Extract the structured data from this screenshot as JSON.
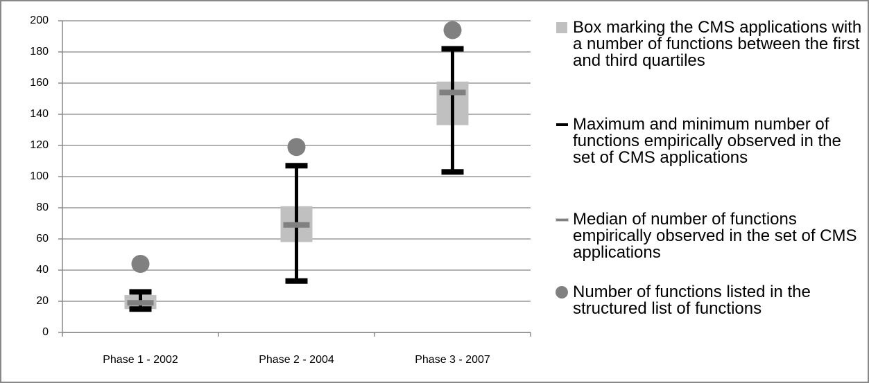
{
  "chart_data": {
    "type": "boxplot",
    "categories": [
      "Phase 1 - 2002",
      "Phase 2 - 2004",
      "Phase 3 - 2007"
    ],
    "ylim": [
      0,
      200
    ],
    "yticks": [
      0,
      20,
      40,
      60,
      80,
      100,
      120,
      140,
      160,
      180,
      200
    ],
    "grid": true,
    "legend": "right",
    "series": [
      {
        "name": "Box marking the CMS applications with a number of functions between the first and third quartiles",
        "color": "#c0c0c0",
        "q1": [
          15,
          58,
          133
        ],
        "q3": [
          24,
          81,
          161
        ]
      },
      {
        "name": "Maximum and minimum number of functions empirically observed in the set of CMS applications",
        "color": "#000000",
        "min": [
          15,
          33,
          103
        ],
        "max": [
          26,
          107,
          182
        ]
      },
      {
        "name": "Median of number of functions empirically observed in the set of CMS applications",
        "color": "#808080",
        "values": [
          19,
          69,
          154
        ]
      },
      {
        "name": "Number of functions listed in the structured list of functions",
        "color": "#808080",
        "values": [
          44,
          119,
          194
        ]
      }
    ]
  }
}
